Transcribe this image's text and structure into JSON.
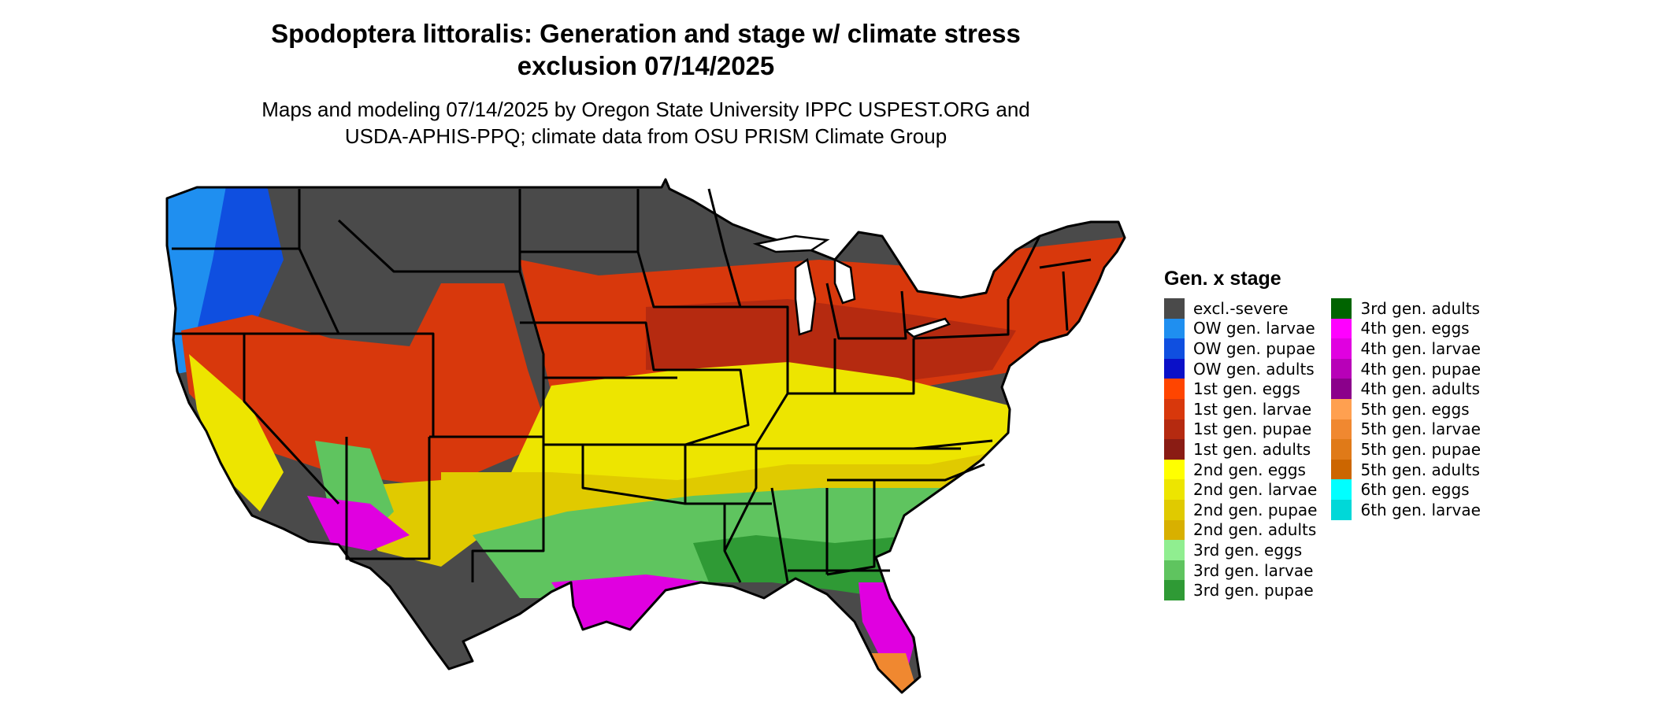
{
  "map": {
    "title_line1": "Spodoptera littoralis: Generation and stage w/ climate stress",
    "title_line2": "exclusion 07/14/2025",
    "subtitle_line1": "Maps and modeling 07/14/2025 by Oregon State University IPPC USPEST.ORG and",
    "subtitle_line2": "USDA-APHIS-PPQ; climate data from OSU PRISM Climate Group",
    "region": "Contiguous United States"
  },
  "legend": {
    "title": "Gen. x stage",
    "items": [
      {
        "label": "excl.-severe",
        "color": "#4a4a4a"
      },
      {
        "label": "OW gen. larvae",
        "color": "#1f8ff0"
      },
      {
        "label": "OW gen. pupae",
        "color": "#0f4fe0"
      },
      {
        "label": "OW gen. adults",
        "color": "#0a10c8"
      },
      {
        "label": "1st gen. eggs",
        "color": "#ff4500"
      },
      {
        "label": "1st gen. larvae",
        "color": "#d8380c"
      },
      {
        "label": "1st gen. pupae",
        "color": "#b52a10"
      },
      {
        "label": "1st gen. adults",
        "color": "#8a1c14"
      },
      {
        "label": "2nd gen. eggs",
        "color": "#ffff00"
      },
      {
        "label": "2nd gen. larvae",
        "color": "#ede500"
      },
      {
        "label": "2nd gen. pupae",
        "color": "#e0ca00"
      },
      {
        "label": "2nd gen. adults",
        "color": "#d8b000"
      },
      {
        "label": "3rd gen. eggs",
        "color": "#90ee90"
      },
      {
        "label": "3rd gen. larvae",
        "color": "#5fc45f"
      },
      {
        "label": "3rd gen. pupae",
        "color": "#2f9a35"
      },
      {
        "label": "3rd gen. adults",
        "color": "#006400"
      },
      {
        "label": "4th gen. eggs",
        "color": "#ff00ff"
      },
      {
        "label": "4th gen. larvae",
        "color": "#e000e0"
      },
      {
        "label": "4th gen. pupae",
        "color": "#b800b8"
      },
      {
        "label": "4th gen. adults",
        "color": "#8b008b"
      },
      {
        "label": "5th gen. eggs",
        "color": "#ffa050"
      },
      {
        "label": "5th gen. larvae",
        "color": "#f08830"
      },
      {
        "label": "5th gen. pupae",
        "color": "#e07a18"
      },
      {
        "label": "5th gen. adults",
        "color": "#cc6600"
      },
      {
        "label": "6th gen. eggs",
        "color": "#00ffff"
      },
      {
        "label": "6th gen. larvae",
        "color": "#00d8d8"
      }
    ]
  },
  "zones": [
    {
      "name": "excl-severe-north",
      "color": "#4a4a4a"
    },
    {
      "name": "ow-larvae-pacific",
      "color": "#1f8ff0"
    },
    {
      "name": "ow-pupae-west",
      "color": "#0f4fe0"
    },
    {
      "name": "1st-gen-larvae-band",
      "color": "#d8380c"
    },
    {
      "name": "1st-gen-pupae-midwest",
      "color": "#b52a10"
    },
    {
      "name": "2nd-gen-larvae-band",
      "color": "#ede500"
    },
    {
      "name": "2nd-gen-pupae-band",
      "color": "#e0ca00"
    },
    {
      "name": "3rd-gen-larvae-south",
      "color": "#5fc45f"
    },
    {
      "name": "3rd-gen-pupae-gulf",
      "color": "#2f9a35"
    },
    {
      "name": "4th-gen-larvae-gulf",
      "color": "#e000e0"
    },
    {
      "name": "5th-gen-larvae-tips",
      "color": "#f08830"
    }
  ]
}
